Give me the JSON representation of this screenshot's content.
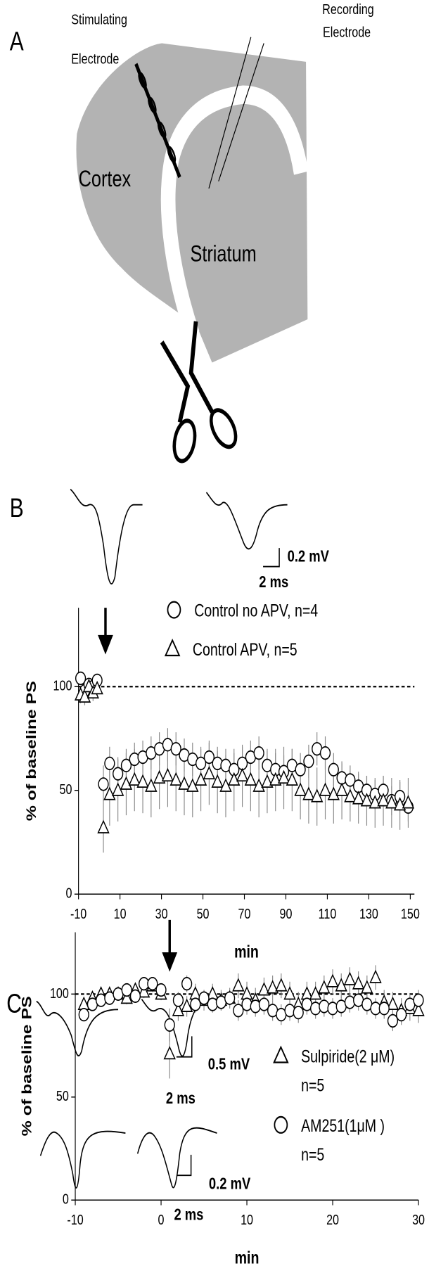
{
  "panel_a": {
    "label": "A",
    "stimulating_electrode": [
      "Stimulating",
      "Electrode"
    ],
    "recording_electrode": [
      "Recording",
      "Electrode"
    ],
    "cortex": "Cortex",
    "striatum": "Striatum"
  },
  "chart_data": [
    {
      "type": "scatter",
      "label": "B",
      "xlabel": "min",
      "ylabel": "% of baseline PS",
      "scale_bars": [
        "0.2 mV",
        "2 ms"
      ],
      "xlim": [
        -10,
        152
      ],
      "ylim": [
        0,
        138
      ],
      "xticks": [
        -10,
        10,
        30,
        50,
        70,
        90,
        110,
        130,
        150
      ],
      "yticks": [
        0,
        50,
        100
      ],
      "reference": 100,
      "arrow_x": 3,
      "x": [
        -9,
        -7,
        -5,
        -3,
        -1,
        2,
        5,
        9,
        13,
        17,
        21,
        25,
        29,
        33,
        37,
        41,
        45,
        49,
        53,
        57,
        61,
        65,
        69,
        73,
        77,
        81,
        85,
        89,
        93,
        97,
        101,
        105,
        109,
        113,
        117,
        121,
        125,
        129,
        133,
        137,
        141,
        145,
        149
      ],
      "series": [
        {
          "name": "Control no APV, n=4",
          "marker": "circle",
          "color": "#000000",
          "values": [
            104,
            98,
            101,
            100,
            103,
            53,
            63,
            58,
            62,
            65,
            66,
            68,
            70,
            72,
            70,
            67,
            65,
            63,
            66,
            63,
            62,
            60,
            63,
            66,
            68,
            62,
            60,
            59,
            62,
            60,
            64,
            70,
            68,
            60,
            56,
            55,
            52,
            50,
            48,
            50,
            45,
            47,
            42
          ],
          "errors": [
            3,
            3,
            3,
            3,
            3,
            9,
            8,
            8,
            8,
            8,
            8,
            8,
            8,
            8,
            8,
            8,
            8,
            8,
            8,
            8,
            8,
            8,
            8,
            8,
            8,
            8,
            8,
            8,
            8,
            8,
            8,
            8,
            8,
            8,
            7,
            7,
            7,
            7,
            7,
            7,
            7,
            7,
            7
          ]
        },
        {
          "name": "Control APV, n=5",
          "marker": "triangle",
          "color": "#000000",
          "values": [
            96,
            95,
            100,
            97,
            99,
            32,
            48,
            50,
            53,
            55,
            54,
            52,
            56,
            57,
            55,
            53,
            52,
            55,
            58,
            54,
            52,
            55,
            57,
            55,
            52,
            54,
            55,
            56,
            55,
            50,
            48,
            47,
            50,
            48,
            50,
            47,
            46,
            45,
            44,
            45,
            44,
            43,
            44
          ],
          "errors": [
            4,
            4,
            4,
            4,
            4,
            12,
            15,
            15,
            15,
            15,
            15,
            15,
            15,
            15,
            15,
            15,
            15,
            15,
            15,
            15,
            15,
            15,
            15,
            15,
            15,
            15,
            15,
            15,
            15,
            14,
            14,
            14,
            14,
            14,
            14,
            12,
            12,
            12,
            12,
            12,
            12,
            12,
            12
          ]
        }
      ]
    },
    {
      "type": "scatter",
      "label": "C",
      "xlabel": "min",
      "ylabel": "% of baseline PS",
      "scale_bars": [
        "0.5 mV",
        "2 ms",
        "0.2 mV",
        "2 ms"
      ],
      "xlim": [
        -10,
        30
      ],
      "ylim": [
        0,
        130
      ],
      "xticks": [
        -10,
        0,
        10,
        20,
        30
      ],
      "yticks": [
        0,
        50,
        100
      ],
      "reference": 100,
      "arrow_x": 1,
      "x": [
        -9,
        -8,
        -7,
        -6,
        -5,
        -4,
        -3,
        -2,
        -1,
        0,
        1,
        2,
        3,
        4,
        5,
        6,
        7,
        8,
        9,
        10,
        11,
        12,
        13,
        14,
        15,
        16,
        17,
        18,
        19,
        20,
        21,
        22,
        23,
        24,
        25,
        26,
        27,
        28,
        29,
        30
      ],
      "series": [
        {
          "name": "Sulpiride(2 μM)",
          "note": "n=5",
          "marker": "triangle",
          "color": "#000000",
          "values": [
            95,
            98,
            100,
            100,
            100,
            98,
            102,
            101,
            104,
            100,
            71,
            92,
            94,
            100,
            97,
            100,
            97,
            98,
            104,
            100,
            97,
            102,
            103,
            104,
            100,
            95,
            100,
            100,
            103,
            106,
            104,
            107,
            105,
            103,
            108,
            96,
            95,
            92,
            93,
            92
          ],
          "errors": [
            3,
            3,
            3,
            3,
            3,
            3,
            3,
            3,
            3,
            3,
            12,
            5,
            5,
            5,
            5,
            5,
            5,
            5,
            6,
            6,
            6,
            6,
            6,
            6,
            6,
            6,
            6,
            6,
            6,
            6,
            6,
            6,
            6,
            6,
            6,
            6,
            6,
            6,
            6,
            6
          ]
        },
        {
          "name": "AM251(1μM )",
          "note": "n=5",
          "marker": "circle",
          "color": "#000000",
          "values": [
            90,
            95,
            97,
            98,
            100,
            102,
            99,
            105,
            105,
            102,
            85,
            97,
            105,
            95,
            98,
            95,
            96,
            98,
            92,
            95,
            94,
            95,
            92,
            90,
            92,
            91,
            95,
            93,
            94,
            93,
            94,
            96,
            97,
            95,
            93,
            93,
            87,
            90,
            95,
            97
          ],
          "errors": [
            3,
            3,
            3,
            3,
            3,
            3,
            3,
            3,
            3,
            3,
            8,
            4,
            4,
            4,
            4,
            4,
            4,
            4,
            5,
            5,
            5,
            5,
            5,
            5,
            5,
            5,
            5,
            5,
            5,
            5,
            5,
            5,
            5,
            5,
            5,
            5,
            5,
            5,
            5,
            5
          ]
        }
      ]
    }
  ]
}
